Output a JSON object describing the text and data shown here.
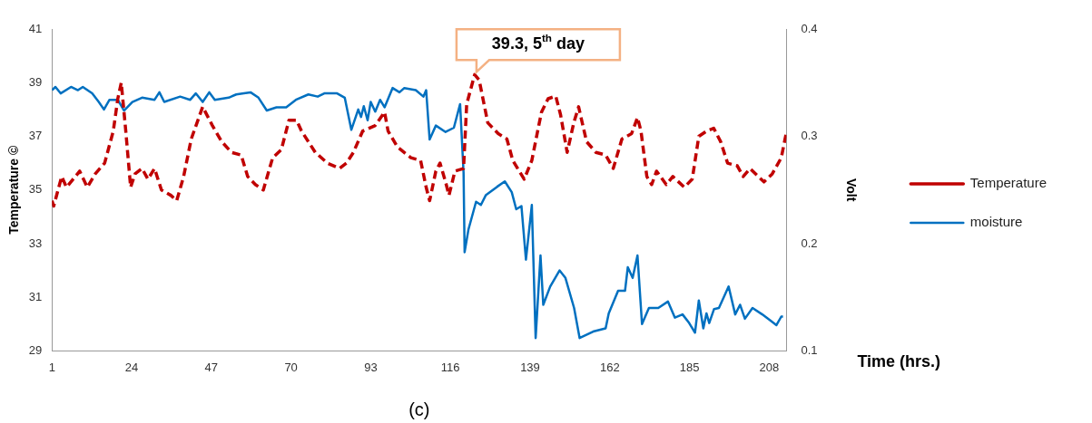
{
  "chart_data": {
    "type": "line",
    "xlabel": "Time (hrs.)",
    "ylabel": "Temperature ©",
    "y2label": "Volt",
    "xlim": [
      1,
      213
    ],
    "xticks": [
      1,
      24,
      47,
      70,
      93,
      116,
      139,
      162,
      185,
      208
    ],
    "ylim": [
      29,
      41
    ],
    "yticks": [
      29,
      31,
      33,
      35,
      37,
      39,
      41
    ],
    "y2lim": [
      0.1,
      0.4
    ],
    "y2ticks": [
      0.1,
      0.2,
      0.3,
      0.4
    ],
    "grid": false,
    "legend": "right",
    "marker": "none",
    "annotations": [
      {
        "text": "39.3, 5$^{th}$ day",
        "x": 123,
        "y": 39.3
      },
      "(c)"
    ],
    "series": [
      {
        "name": "Temperature",
        "color": "#c00000",
        "line_style": "dashed",
        "x": [
          1,
          1.5,
          3.8,
          5.2,
          9,
          11.2,
          13.5,
          16.2,
          18.7,
          20,
          21,
          22.3,
          23.7,
          25,
          27,
          28.7,
          30.6,
          32.6,
          35.3,
          37,
          39,
          41.2,
          44.5,
          47.3,
          50,
          52.8,
          55.6,
          57.5,
          59.7,
          62,
          64.7,
          67.2,
          69.4,
          71.6,
          73,
          77,
          80.5,
          84,
          86,
          88,
          90.7,
          94.3,
          97,
          98,
          100.7,
          104.6,
          107.4,
          109,
          110,
          111.8,
          113,
          114.6,
          115.6,
          117.3,
          119.8,
          120.7,
          123,
          124.3,
          126.8,
          129.8,
          132.3,
          134,
          137.3,
          139.5,
          141.5,
          142.3,
          144.2,
          146.4,
          147.8,
          149.7,
          151.6,
          153,
          155.3,
          158,
          160.8,
          163,
          165.5,
          168.3,
          170,
          171,
          172.7,
          174.1,
          175.5,
          178.3,
          180.2,
          183.5,
          185.8,
          187.7,
          190,
          192,
          194,
          196,
          198.8,
          200.5,
          202.5,
          206.5,
          208.9,
          211.5,
          212.9
        ],
        "values": [
          34.6,
          34.4,
          35.5,
          35.1,
          35.7,
          35.1,
          35.6,
          36.0,
          37.2,
          38.4,
          39.0,
          37.2,
          35.1,
          35.6,
          35.8,
          35.4,
          35.8,
          35.0,
          34.8,
          34.6,
          35.5,
          36.9,
          38.1,
          37.4,
          36.8,
          36.4,
          36.3,
          35.5,
          35.2,
          35.0,
          36.2,
          36.5,
          37.6,
          37.6,
          37.2,
          36.4,
          36.0,
          35.8,
          36.0,
          36.4,
          37.2,
          37.4,
          37.9,
          37.2,
          36.6,
          36.2,
          36.1,
          35.1,
          34.6,
          35.7,
          36.0,
          35.3,
          34.8,
          35.7,
          35.8,
          38.2,
          39.3,
          39.1,
          37.5,
          37.1,
          36.9,
          36.1,
          35.4,
          36.1,
          37.4,
          37.9,
          38.4,
          38.5,
          37.8,
          36.4,
          37.5,
          38.1,
          36.8,
          36.4,
          36.3,
          35.8,
          36.9,
          37.1,
          37.7,
          37.2,
          35.5,
          35.2,
          35.7,
          35.2,
          35.5,
          35.1,
          35.4,
          37.0,
          37.2,
          37.3,
          36.8,
          36.0,
          35.9,
          35.5,
          35.8,
          35.3,
          35.6,
          36.2,
          37.1
        ]
      },
      {
        "name": "moisture",
        "color": "#0070c0",
        "line_style": "solid",
        "axis": "y2",
        "x": [
          1,
          2,
          3.5,
          6.5,
          8.5,
          9.9,
          12.6,
          14.5,
          16,
          17.6,
          20,
          21.8,
          24.2,
          27,
          30.6,
          32,
          33.4,
          38,
          40.9,
          42.5,
          44.5,
          46.4,
          48,
          52,
          54.2,
          56.4,
          58.3,
          60.6,
          63,
          65.8,
          68.6,
          71.4,
          75,
          77.7,
          79.6,
          83.3,
          85.5,
          87.4,
          89.4,
          90.2,
          91,
          92.1,
          93,
          94.3,
          95.7,
          97,
          99.3,
          101.3,
          102.7,
          106,
          108.2,
          109,
          110,
          111.8,
          114.6,
          117,
          118.8,
          119.8,
          120.1,
          121.2,
          123.4,
          124.8,
          126.2,
          129.5,
          131.7,
          133.7,
          135,
          136.5,
          137.8,
          139.5,
          140.6,
          142,
          142.8,
          144.8,
          147.5,
          149.2,
          151.7,
          153.3,
          157.2,
          160.8,
          161.7,
          164.4,
          166.4,
          167.2,
          168.6,
          170,
          171.3,
          173.3,
          176,
          178.8,
          180.8,
          183,
          184.9,
          186.6,
          187.7,
          189,
          189.9,
          190.7,
          192.1,
          193.5,
          196.3,
          198.2,
          199.6,
          201,
          203.2,
          206,
          208.5,
          210.1,
          211.5,
          212
        ],
        "values": [
          0.343,
          0.346,
          0.34,
          0.346,
          0.343,
          0.346,
          0.34,
          0.332,
          0.325,
          0.334,
          0.334,
          0.324,
          0.332,
          0.336,
          0.334,
          0.341,
          0.332,
          0.337,
          0.334,
          0.34,
          0.332,
          0.341,
          0.334,
          0.336,
          0.339,
          0.34,
          0.341,
          0.336,
          0.324,
          0.327,
          0.327,
          0.334,
          0.339,
          0.337,
          0.34,
          0.34,
          0.336,
          0.306,
          0.325,
          0.318,
          0.328,
          0.315,
          0.332,
          0.323,
          0.334,
          0.327,
          0.345,
          0.341,
          0.345,
          0.343,
          0.337,
          0.343,
          0.297,
          0.31,
          0.304,
          0.308,
          0.33,
          0.266,
          0.192,
          0.213,
          0.239,
          0.236,
          0.245,
          0.253,
          0.258,
          0.248,
          0.232,
          0.235,
          0.185,
          0.236,
          0.112,
          0.189,
          0.143,
          0.16,
          0.175,
          0.168,
          0.14,
          0.112,
          0.118,
          0.121,
          0.135,
          0.156,
          0.156,
          0.178,
          0.168,
          0.189,
          0.125,
          0.14,
          0.14,
          0.146,
          0.131,
          0.134,
          0.126,
          0.117,
          0.147,
          0.121,
          0.135,
          0.126,
          0.139,
          0.14,
          0.16,
          0.134,
          0.143,
          0.13,
          0.14,
          0.134,
          0.128,
          0.124,
          0.132,
          0.132
        ]
      }
    ]
  }
}
